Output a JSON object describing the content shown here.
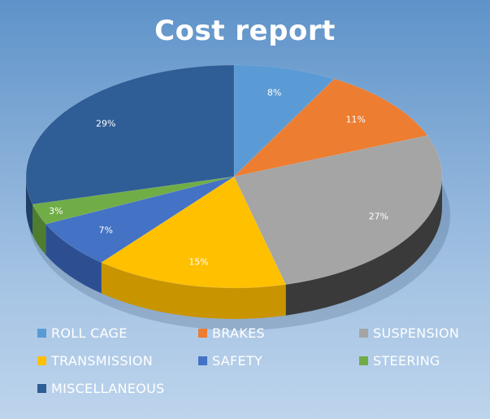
{
  "chart_data": {
    "type": "pie",
    "title": "Cost report",
    "slices": [
      {
        "name": "ROLL CAGE",
        "value": 8,
        "label": "8%",
        "color": "#5b9bd5",
        "side": "#3f77ad"
      },
      {
        "name": "BRAKES",
        "value": 11,
        "label": "11%",
        "color": "#ed7d31",
        "side": "#b95b1e"
      },
      {
        "name": "SUSPENSION",
        "value": 27,
        "label": "27%",
        "color": "#a5a5a5",
        "side": "#3a3a3a"
      },
      {
        "name": "TRANSMISSION",
        "value": 15,
        "label": "15%",
        "color": "#ffc000",
        "side": "#c89400"
      },
      {
        "name": "SAFETY",
        "value": 7,
        "label": "7%",
        "color": "#4472c4",
        "side": "#2d4f92"
      },
      {
        "name": "STEERING",
        "value": 3,
        "label": "3%",
        "color": "#70ad47",
        "side": "#4e7d30"
      },
      {
        "name": "MISCELLANEOUS",
        "value": 29,
        "label": "29%",
        "color": "#2f5d95",
        "side": "#1f3f66"
      }
    ],
    "legend_position": "bottom"
  }
}
